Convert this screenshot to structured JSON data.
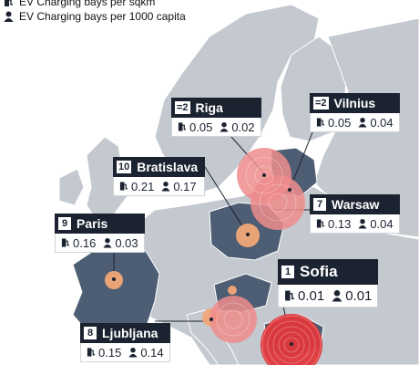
{
  "legend": {
    "items": [
      {
        "icon": "charger-icon",
        "label": "EV Charging bays per sqkm"
      },
      {
        "icon": "person-icon",
        "label": "EV Charging bays per 1000 capita"
      }
    ]
  },
  "colors": {
    "sea": "#ffffff",
    "land": "#c4c9d0",
    "highlight_land": "#4d5d73",
    "border": "#ffffff",
    "label_bg": "#1b2230",
    "bubble_red": "#e0373a",
    "bubble_pink": "#ee8c8c",
    "bubble_orange": "#f0a877"
  },
  "cities": [
    {
      "rank": "=2",
      "name": "Riga",
      "per_sqkm": "0.05",
      "per_capita": "0.02"
    },
    {
      "rank": "=2",
      "name": "Vilnius",
      "per_sqkm": "0.05",
      "per_capita": "0.04"
    },
    {
      "rank": "10",
      "name": "Bratislava",
      "per_sqkm": "0.21",
      "per_capita": "0.17"
    },
    {
      "rank": "7",
      "name": "Warsaw",
      "per_sqkm": "0.13",
      "per_capita": "0.04"
    },
    {
      "rank": "9",
      "name": "Paris",
      "per_sqkm": "0.16",
      "per_capita": "0.03"
    },
    {
      "rank": "1",
      "name": "Sofia",
      "per_sqkm": "0.01",
      "per_capita": "0.01"
    },
    {
      "rank": "8",
      "name": "Ljubljana",
      "per_sqkm": "0.15",
      "per_capita": "0.14"
    }
  ]
}
